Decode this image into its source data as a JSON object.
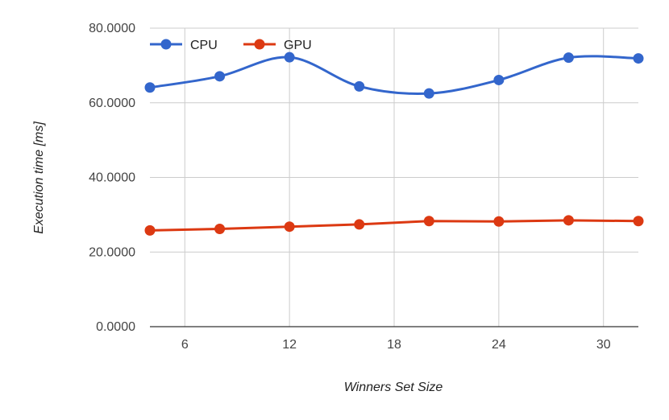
{
  "chart_data": {
    "type": "line",
    "title": "",
    "xlabel": "Winners Set Size",
    "ylabel": "Execution time [ms]",
    "xlim": [
      4,
      32
    ],
    "ylim": [
      0,
      80
    ],
    "xticks": [
      6,
      12,
      18,
      24,
      30
    ],
    "yticks": [
      0,
      20,
      40,
      60,
      80
    ],
    "ytick_labels": [
      "0.0000",
      "20.0000",
      "40.0000",
      "60.0000",
      "80.0000"
    ],
    "grid": true,
    "legend_position": "top-left",
    "x": [
      4,
      8,
      12,
      16,
      20,
      24,
      28,
      32
    ],
    "series": [
      {
        "name": "CPU",
        "color": "#3366cc",
        "smooth": true,
        "values": [
          64.1,
          67.1,
          72.2,
          64.4,
          62.5,
          66.1,
          72.1,
          71.9
        ]
      },
      {
        "name": "GPU",
        "color": "#dc3912",
        "smooth": false,
        "values": [
          25.8,
          26.2,
          26.8,
          27.4,
          28.3,
          28.2,
          28.5,
          28.3
        ]
      }
    ]
  }
}
